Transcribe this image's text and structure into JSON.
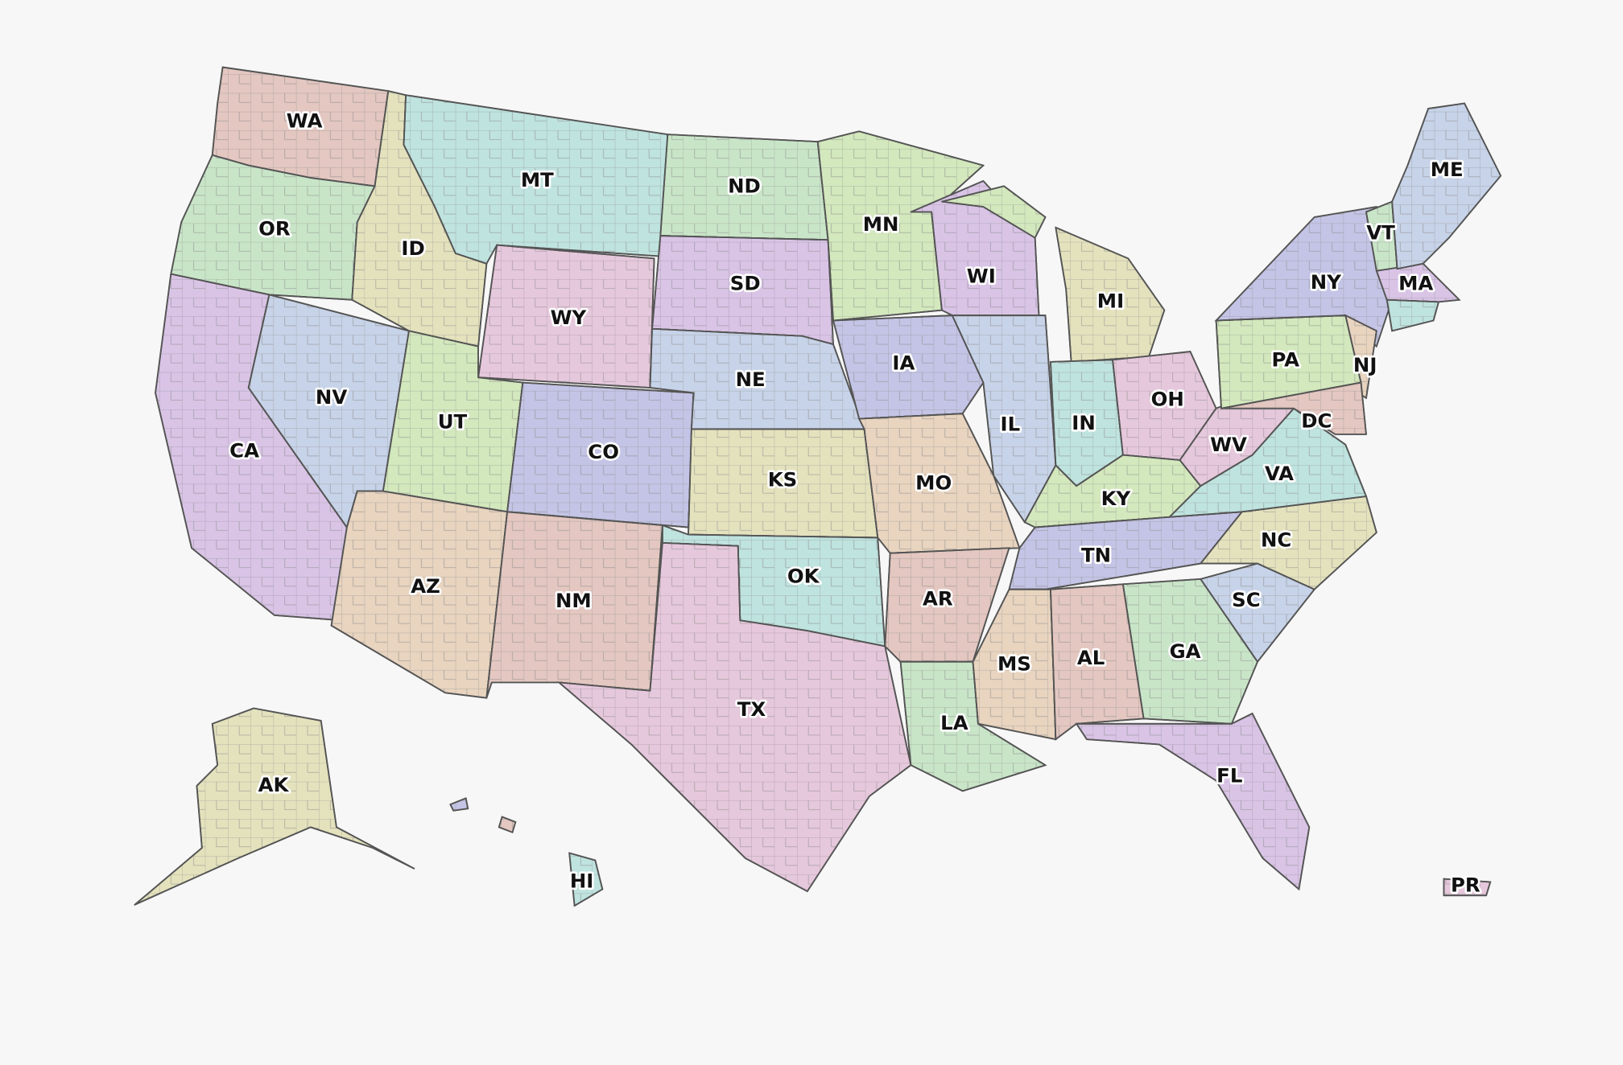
{
  "map": {
    "background": "#f7f7f7",
    "border_color": "#555555",
    "palette": [
      "#e3c7c0",
      "#c9e5c8",
      "#d9c4e6",
      "#c7d3e8",
      "#e4e2bd",
      "#bfe3df",
      "#e6c8dc",
      "#d3e8bd",
      "#c4c4e6",
      "#e8d4bf"
    ],
    "states": [
      {
        "abbr": "WA"
      },
      {
        "abbr": "OR"
      },
      {
        "abbr": "CA"
      },
      {
        "abbr": "NV"
      },
      {
        "abbr": "ID"
      },
      {
        "abbr": "MT"
      },
      {
        "abbr": "WY"
      },
      {
        "abbr": "UT"
      },
      {
        "abbr": "CO"
      },
      {
        "abbr": "AZ"
      },
      {
        "abbr": "NM"
      },
      {
        "abbr": "ND"
      },
      {
        "abbr": "SD"
      },
      {
        "abbr": "NE"
      },
      {
        "abbr": "KS"
      },
      {
        "abbr": "OK"
      },
      {
        "abbr": "TX"
      },
      {
        "abbr": "MN"
      },
      {
        "abbr": "IA"
      },
      {
        "abbr": "MO"
      },
      {
        "abbr": "AR"
      },
      {
        "abbr": "LA"
      },
      {
        "abbr": "WI"
      },
      {
        "abbr": "IL"
      },
      {
        "abbr": "MI"
      },
      {
        "abbr": "IN"
      },
      {
        "abbr": "OH"
      },
      {
        "abbr": "KY"
      },
      {
        "abbr": "TN"
      },
      {
        "abbr": "MS"
      },
      {
        "abbr": "AL"
      },
      {
        "abbr": "GA"
      },
      {
        "abbr": "FL"
      },
      {
        "abbr": "SC"
      },
      {
        "abbr": "NC"
      },
      {
        "abbr": "VA"
      },
      {
        "abbr": "WV"
      },
      {
        "abbr": "PA"
      },
      {
        "abbr": "NY"
      },
      {
        "abbr": "NJ"
      },
      {
        "abbr": "DC"
      },
      {
        "abbr": "VT"
      },
      {
        "abbr": "MA"
      },
      {
        "abbr": "ME"
      },
      {
        "abbr": "AK"
      },
      {
        "abbr": "HI"
      },
      {
        "abbr": "PR"
      }
    ]
  }
}
